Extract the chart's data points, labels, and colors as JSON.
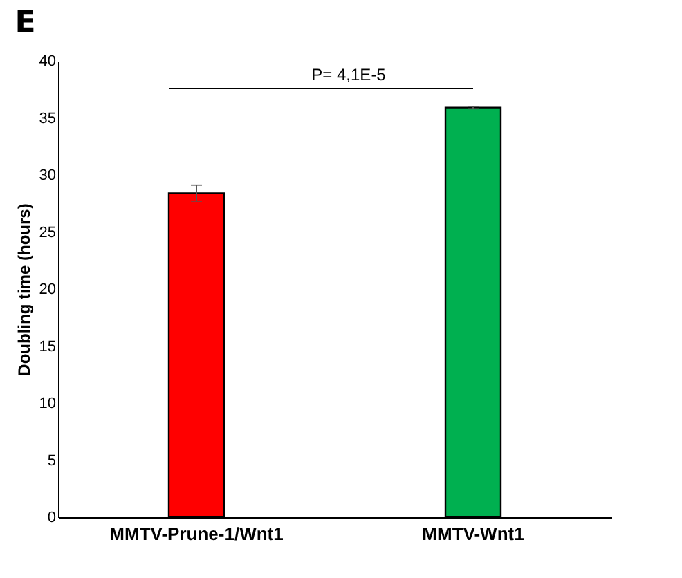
{
  "chart_data": {
    "type": "bar",
    "title": "E",
    "ylabel": "Doubling time (hours)",
    "categories": [
      "MMTV-Prune-1/Wnt1",
      "MMTV-Wnt1"
    ],
    "values": [
      28.4,
      35.9
    ],
    "colors": [
      "#ff0000",
      "#00b050"
    ],
    "errors": [
      0.7,
      0.1
    ],
    "ylim": [
      0,
      40
    ],
    "yticks": [
      0,
      5,
      10,
      15,
      20,
      25,
      30,
      35,
      40
    ],
    "annotations": [
      "P= 4,1E-5"
    ],
    "grid": false,
    "legend": false
  }
}
